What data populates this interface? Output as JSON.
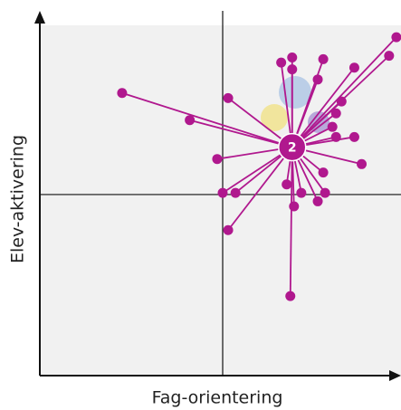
{
  "chart_data": {
    "type": "scatter",
    "x_label": "Fag-orientering",
    "y_label": "Elev-aktivering",
    "xlim": [
      -1,
      1
    ],
    "ylim": [
      -1.07,
      1
    ],
    "color": "#b0188e",
    "center": {
      "label": "2",
      "x": 0.38,
      "y": 0.28
    },
    "x": [
      -0.55,
      -0.18,
      0.03,
      -0.03,
      0.0,
      0.07,
      0.03,
      0.37,
      0.35,
      0.39,
      0.43,
      0.52,
      0.56,
      0.55,
      0.62,
      0.6,
      0.72,
      0.76,
      0.55,
      0.52,
      0.32,
      0.38,
      0.38,
      0.72,
      0.65,
      0.62,
      0.95,
      0.91
    ],
    "values": [
      0.6,
      0.44,
      0.57,
      0.21,
      0.01,
      0.01,
      -0.21,
      -0.6,
      0.06,
      -0.07,
      0.01,
      -0.04,
      0.01,
      0.13,
      0.34,
      0.4,
      0.34,
      0.18,
      0.8,
      0.68,
      0.78,
      0.81,
      0.74,
      0.75,
      0.55,
      0.48,
      0.93,
      0.82
    ]
  }
}
